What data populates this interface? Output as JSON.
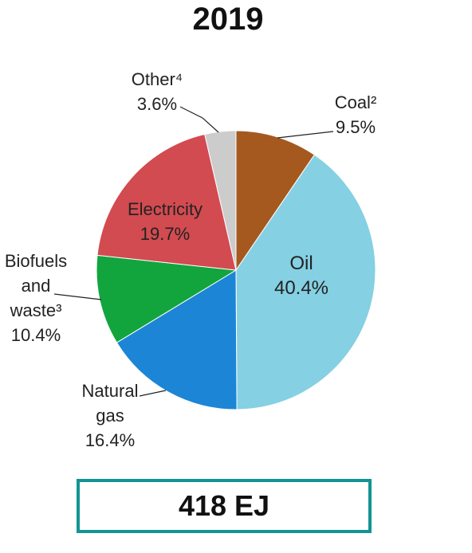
{
  "chart_data": {
    "type": "pie",
    "title": "2019",
    "slices": [
      {
        "name": "Coal²",
        "value": 9.5,
        "label": "9.5%",
        "color": "#A5591F"
      },
      {
        "name": "Oil",
        "value": 40.4,
        "label": "40.4%",
        "color": "#85D0E3"
      },
      {
        "name": "Natural gas",
        "value": 16.4,
        "label": "16.4%",
        "color": "#1C85D6"
      },
      {
        "name": "Biofuels and waste³",
        "value": 10.4,
        "label": "10.4%",
        "color": "#12A53E"
      },
      {
        "name": "Electricity",
        "value": 19.7,
        "label": "19.7%",
        "color": "#D24B50"
      },
      {
        "name": "Other⁴",
        "value": 3.6,
        "label": "3.6%",
        "color": "#CCCCCC"
      }
    ],
    "start_angle_deg": 0,
    "direction": "clockwise"
  },
  "total": {
    "text": "418 EJ",
    "border_color": "#149394"
  }
}
